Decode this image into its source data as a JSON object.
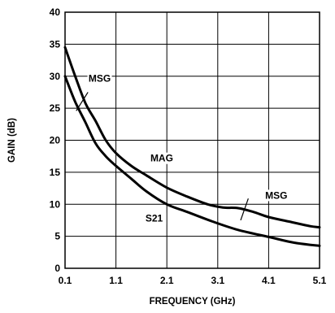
{
  "chart_data": {
    "type": "line",
    "xlabel": "FREQUENCY (GHz)",
    "ylabel": "GAIN (dB)",
    "xlim": [
      0.1,
      5.1
    ],
    "ylim": [
      0,
      40
    ],
    "x_ticks": [
      "0.1",
      "1.1",
      "2.1",
      "3.1",
      "4.1",
      "5.1"
    ],
    "y_ticks": [
      "0",
      "5",
      "10",
      "15",
      "20",
      "25",
      "30",
      "35",
      "40"
    ],
    "grid": true,
    "series": [
      {
        "name": "MSG / MAG",
        "x": [
          0.1,
          0.3,
          0.5,
          0.7,
          0.9,
          1.1,
          1.4,
          1.7,
          2.1,
          2.5,
          2.9,
          3.2,
          3.5,
          3.8,
          4.1,
          4.5,
          4.9,
          5.1
        ],
        "y": [
          34.5,
          30.0,
          25.8,
          23.0,
          20.0,
          18.0,
          16.0,
          14.5,
          12.6,
          11.2,
          10.0,
          9.5,
          9.4,
          8.8,
          8.0,
          7.3,
          6.6,
          6.4
        ]
      },
      {
        "name": "S21",
        "x": [
          0.1,
          0.3,
          0.5,
          0.7,
          0.9,
          1.1,
          1.4,
          1.7,
          2.1,
          2.5,
          3.0,
          3.5,
          4.1,
          4.6,
          5.1
        ],
        "y": [
          30.0,
          26.0,
          22.8,
          19.5,
          17.5,
          16.0,
          14.0,
          12.0,
          10.0,
          8.8,
          7.3,
          6.0,
          4.9,
          4.0,
          3.5
        ]
      }
    ],
    "annotations": [
      {
        "text": "MSG",
        "x": 0.78,
        "y": 29.3,
        "pointer": {
          "x1": 0.55,
          "y1": 27.5,
          "x2": 0.32,
          "y2": 24.6
        }
      },
      {
        "text": "MAG",
        "x": 2.0,
        "y": 16.8
      },
      {
        "text": "S21",
        "x": 1.85,
        "y": 7.4
      },
      {
        "text": "MSG",
        "x": 4.25,
        "y": 11.0,
        "pointer": {
          "x1": 3.7,
          "y1": 10.9,
          "x2": 3.55,
          "y2": 7.5
        }
      }
    ]
  }
}
